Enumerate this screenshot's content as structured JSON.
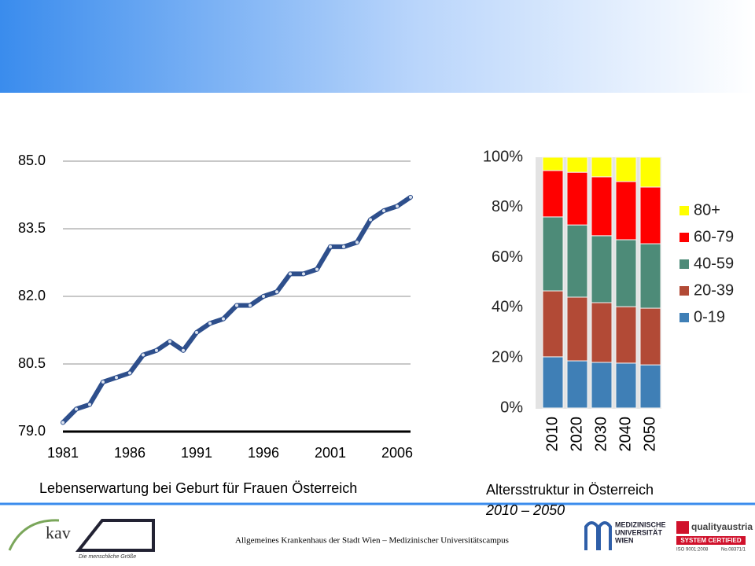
{
  "chart_data": [
    {
      "type": "line",
      "title": "Lebenserwartung bei Geburt für Frauen Österreich",
      "x": [
        1981,
        1982,
        1983,
        1984,
        1985,
        1986,
        1987,
        1988,
        1989,
        1990,
        1991,
        1992,
        1993,
        1994,
        1995,
        1996,
        1997,
        1998,
        1999,
        2000,
        2001,
        2002,
        2003,
        2004,
        2005,
        2006,
        2007
      ],
      "series": [
        {
          "color": "#2e4f8c",
          "values": [
            79.2,
            79.5,
            79.6,
            80.1,
            80.2,
            80.3,
            80.7,
            80.8,
            81.0,
            80.8,
            81.2,
            81.4,
            81.5,
            81.8,
            81.8,
            82.0,
            82.1,
            82.5,
            82.5,
            82.6,
            83.1,
            83.1,
            83.2,
            83.7,
            83.9,
            84.0,
            84.2
          ]
        }
      ],
      "xlim": [
        1981,
        2007
      ],
      "xticks": [
        1981,
        1986,
        1991,
        1996,
        2001,
        2006
      ],
      "ylim": [
        79,
        85.3
      ],
      "yticks": [
        {
          "value": 79,
          "label": "79.0"
        },
        {
          "value": 80.5,
          "label": "80.5"
        },
        {
          "value": 82,
          "label": "82.0"
        },
        {
          "value": 83.5,
          "label": "83.5"
        },
        {
          "value": 85,
          "label": "85.0"
        }
      ],
      "grid": true
    },
    {
      "type": "stacked_bar",
      "title": "Altersstruktur in Österreich",
      "subtitle": "2010 – 2050",
      "categories": [
        "2010",
        "2020",
        "2030",
        "2040",
        "2050"
      ],
      "series": [
        {
          "name": "0-19",
          "color": "#3f7fb6",
          "values": [
            20.4,
            18.8,
            18.2,
            17.9,
            17.2
          ]
        },
        {
          "name": "20-39",
          "color": "#b24a36",
          "values": [
            26.3,
            25.4,
            23.8,
            22.5,
            22.6
          ]
        },
        {
          "name": "40-59",
          "color": "#4d8b78",
          "values": [
            29.5,
            28.8,
            26.7,
            26.7,
            25.7
          ]
        },
        {
          "name": "60-79",
          "color": "#ff0000",
          "values": [
            18.5,
            21.0,
            23.5,
            23.2,
            22.6
          ]
        },
        {
          "name": "80+",
          "color": "#ffff00",
          "values": [
            5.3,
            6.0,
            7.8,
            9.7,
            11.9
          ]
        }
      ],
      "ylim": [
        0,
        100
      ],
      "yticks": [
        {
          "value": 0,
          "label": "0%"
        },
        {
          "value": 20,
          "label": "20%"
        },
        {
          "value": 40,
          "label": "40%"
        },
        {
          "value": 60,
          "label": "60%"
        },
        {
          "value": 80,
          "label": "80%"
        },
        {
          "value": 100,
          "label": "100%"
        }
      ],
      "legend": "right"
    }
  ],
  "footer": "Allgemeines Krankenhaus der Stadt Wien – Medizinischer Universitätscampus",
  "logos": {
    "kav": "kav",
    "akh": "Die menschliche Größe",
    "meduni": [
      "MEDIZINISCHE",
      "UNIVERSITÄT",
      "WIEN"
    ],
    "quality": [
      "qualityaustria",
      "SYSTEM CERTIFIED",
      "ISO 9001:2008",
      "No.08371/1"
    ]
  }
}
